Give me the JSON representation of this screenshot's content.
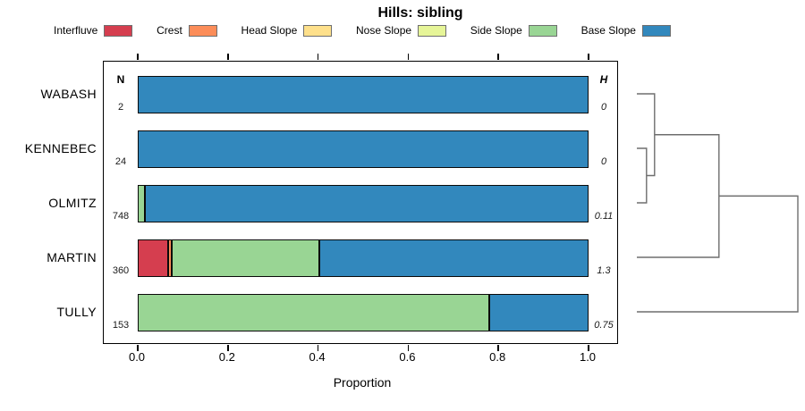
{
  "chart_data": {
    "type": "bar",
    "subtype": "horizontal-stacked-proportion-with-dendrogram",
    "title": "Hills: sibling",
    "xlabel": "Proportion",
    "xlim": [
      0,
      1
    ],
    "xtick_labels": [
      "0.0",
      "0.2",
      "0.4",
      "0.6",
      "0.8",
      "1.0"
    ],
    "xtick_values": [
      0,
      0.2,
      0.4,
      0.6,
      0.8,
      1.0
    ],
    "grid": false,
    "legend_position": "top",
    "left_column_header": "N",
    "right_column_header": "H",
    "categories": [
      "Interfluve",
      "Crest",
      "Head Slope",
      "Nose Slope",
      "Side Slope",
      "Base Slope"
    ],
    "colors": {
      "Interfluve": "#D53E4F",
      "Crest": "#FC8D59",
      "Head Slope": "#FEE08B",
      "Nose Slope": "#E6F598",
      "Side Slope": "#99D594",
      "Base Slope": "#3288BD"
    },
    "rows": [
      {
        "label": "WABASH",
        "n": "2",
        "h": "0",
        "segments": [
          {
            "category": "Base Slope",
            "value": 1.0
          }
        ]
      },
      {
        "label": "KENNEBEC",
        "n": "24",
        "h": "0",
        "segments": [
          {
            "category": "Base Slope",
            "value": 1.0
          }
        ]
      },
      {
        "label": "OLMITZ",
        "n": "748",
        "h": "0.11",
        "segments": [
          {
            "category": "Side Slope",
            "value": 0.015
          },
          {
            "category": "Base Slope",
            "value": 0.985
          }
        ]
      },
      {
        "label": "MARTIN",
        "n": "360",
        "h": "1.3",
        "segments": [
          {
            "category": "Interfluve",
            "value": 0.067
          },
          {
            "category": "Crest",
            "value": 0.008
          },
          {
            "category": "Side Slope",
            "value": 0.328
          },
          {
            "category": "Base Slope",
            "value": 0.597
          }
        ]
      },
      {
        "label": "TULLY",
        "n": "153",
        "h": "0.75",
        "segments": [
          {
            "category": "Side Slope",
            "value": 0.78
          },
          {
            "category": "Base Slope",
            "value": 0.22
          }
        ]
      }
    ],
    "dendrogram": {
      "orientation": "right",
      "leaf_order": [
        "WABASH",
        "KENNEBEC",
        "OLMITZ",
        "MARTIN",
        "TULLY"
      ],
      "merges": [
        {
          "id": "M1",
          "a": "KENNEBEC",
          "b": "OLMITZ",
          "height": 0.06
        },
        {
          "id": "M2",
          "a": "WABASH",
          "b": "M1",
          "height": 0.11
        },
        {
          "id": "M3",
          "a": "M2",
          "b": "MARTIN",
          "height": 0.51
        },
        {
          "id": "M4",
          "a": "M3",
          "b": "TULLY",
          "height": 1.0
        }
      ],
      "line_color": "#6e6e6e"
    }
  },
  "legend": {
    "items": [
      {
        "label": "Interfluve",
        "color": "#D53E4F"
      },
      {
        "label": "Crest",
        "color": "#FC8D59"
      },
      {
        "label": "Head Slope",
        "color": "#FEE08B"
      },
      {
        "label": "Nose Slope",
        "color": "#E6F598"
      },
      {
        "label": "Side Slope",
        "color": "#99D594"
      },
      {
        "label": "Base Slope",
        "color": "#3288BD"
      }
    ]
  }
}
